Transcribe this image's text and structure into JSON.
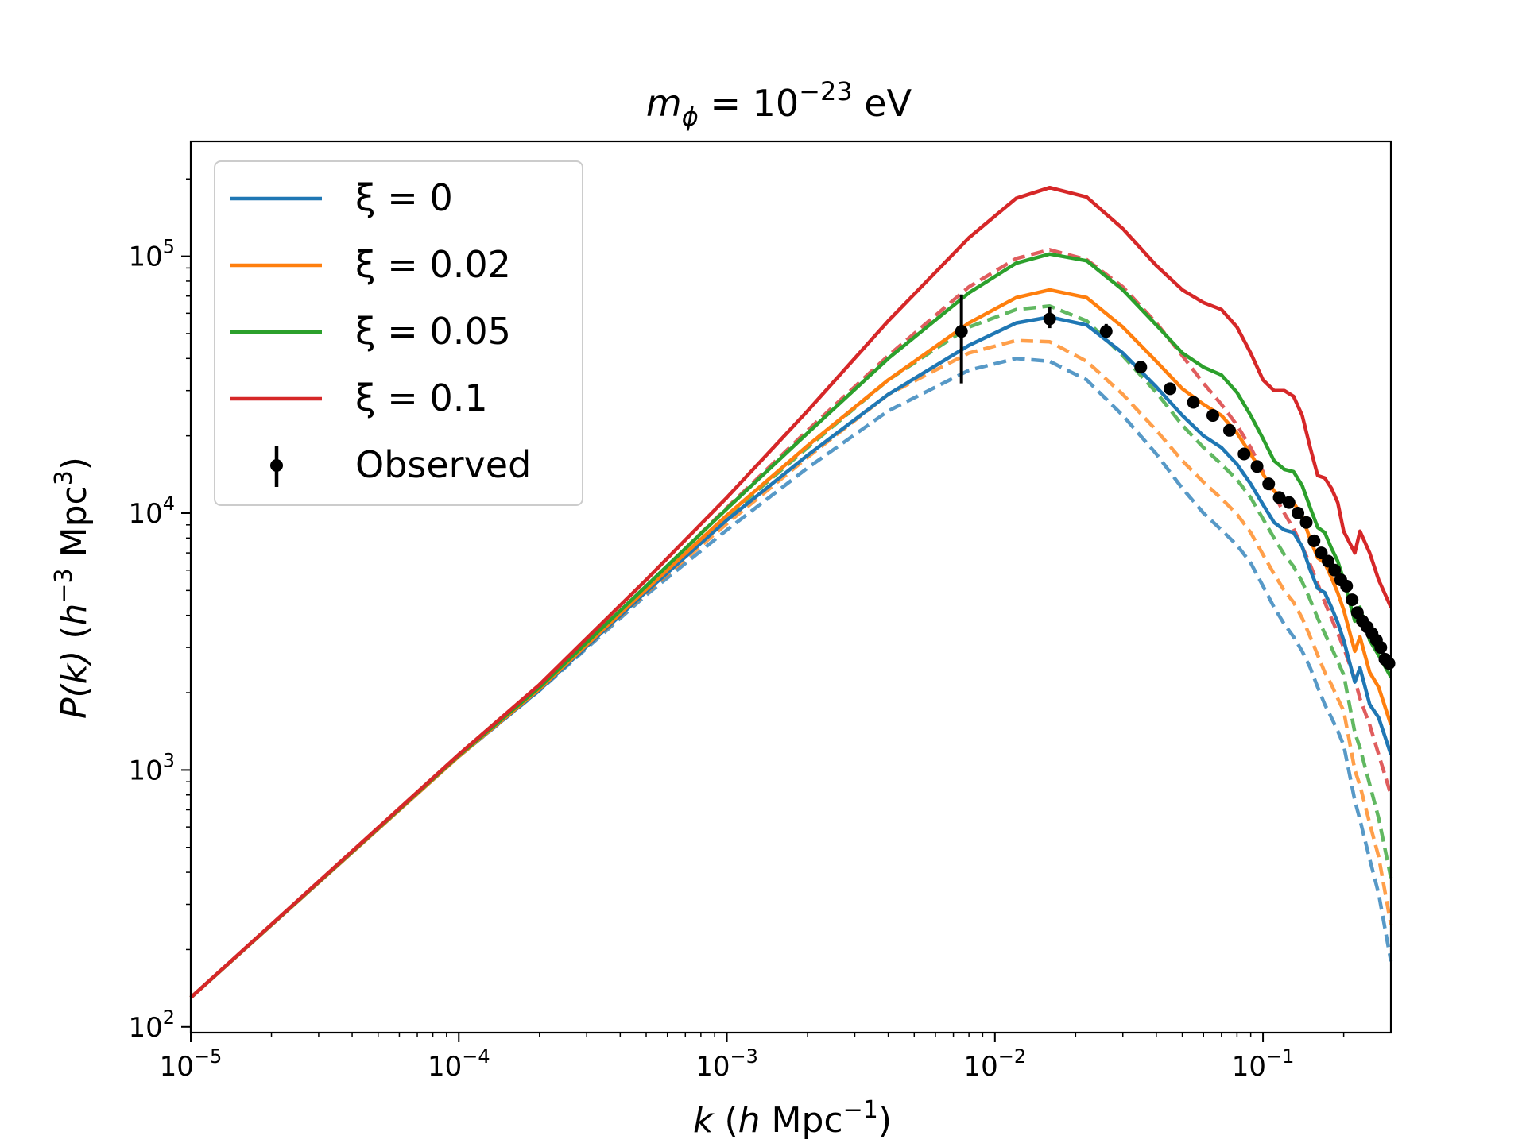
{
  "chart_data": {
    "type": "line",
    "title": "m_ϕ = 10^−23 eV",
    "title_parts": {
      "base": "m",
      "sub": "ϕ",
      "eq": " = 10",
      "sup": "−23",
      "unit": " eV"
    },
    "xlabel": "k (h Mpc^−1)",
    "xlabel_parts": {
      "k": "k",
      "open": " (",
      "h": "h",
      "mpc": " Mpc",
      "sup": "−1",
      "close": ")"
    },
    "ylabel": "P(k) (h^−3 Mpc^3)",
    "ylabel_parts": {
      "pk": "P(k)",
      "open": " (",
      "h": "h",
      "sup1": "−3",
      "mpc": " Mpc",
      "sup2": "3",
      "close": ")"
    },
    "xscale": "log",
    "yscale": "log",
    "xlim": [
      1e-05,
      0.3
    ],
    "ylim": [
      95,
      280000
    ],
    "x_ticks": [
      {
        "value": 1e-05,
        "base": "10",
        "exp": "−5"
      },
      {
        "value": 0.0001,
        "base": "10",
        "exp": "−4"
      },
      {
        "value": 0.001,
        "base": "10",
        "exp": "−3"
      },
      {
        "value": 0.01,
        "base": "10",
        "exp": "−2"
      },
      {
        "value": 0.1,
        "base": "10",
        "exp": "−1"
      }
    ],
    "y_ticks": [
      {
        "value": 100,
        "base": "10",
        "exp": "2"
      },
      {
        "value": 1000,
        "base": "10",
        "exp": "3"
      },
      {
        "value": 10000,
        "base": "10",
        "exp": "4"
      },
      {
        "value": 100000,
        "base": "10",
        "exp": "5"
      }
    ],
    "legend": {
      "location": "upper-left",
      "entries": [
        {
          "label": "ξ = 0",
          "color": "#1f77b4",
          "kind": "line"
        },
        {
          "label": "ξ = 0.02",
          "color": "#ff7f0e",
          "kind": "line"
        },
        {
          "label": "ξ = 0.05",
          "color": "#2ca02c",
          "kind": "line"
        },
        {
          "label": "ξ = 0.1",
          "color": "#d62728",
          "kind": "line"
        },
        {
          "label": "Observed",
          "color": "#000000",
          "kind": "errorbar"
        }
      ]
    },
    "series": [
      {
        "name": "ξ = 0",
        "style": "solid",
        "color": "#1f77b4",
        "x": [
          1e-05,
          0.0001,
          0.0002,
          0.0005,
          0.001,
          0.002,
          0.004,
          0.008,
          0.012,
          0.016,
          0.022,
          0.03,
          0.04,
          0.05,
          0.06,
          0.07,
          0.08,
          0.09,
          0.1,
          0.11,
          0.12,
          0.13,
          0.14,
          0.15,
          0.16,
          0.17,
          0.18,
          0.19,
          0.2,
          0.22,
          0.23,
          0.25,
          0.27,
          0.3
        ],
        "y": [
          130,
          1130,
          2050,
          4950,
          9400,
          16800,
          29000,
          45000,
          55000,
          58000,
          54000,
          42000,
          31000,
          24000,
          20000,
          18000,
          15500,
          13000,
          10800,
          9200,
          8600,
          8400,
          7400,
          6000,
          5100,
          4900,
          4300,
          3750,
          3200,
          2200,
          2500,
          1800,
          1600,
          1150
        ]
      },
      {
        "name": "ξ = 0.02",
        "style": "solid",
        "color": "#ff7f0e",
        "x": [
          1e-05,
          0.0001,
          0.0002,
          0.0005,
          0.001,
          0.002,
          0.004,
          0.008,
          0.012,
          0.016,
          0.022,
          0.03,
          0.04,
          0.05,
          0.06,
          0.07,
          0.08,
          0.09,
          0.1,
          0.11,
          0.12,
          0.13,
          0.14,
          0.15,
          0.16,
          0.17,
          0.18,
          0.19,
          0.2,
          0.22,
          0.23,
          0.25,
          0.27,
          0.3
        ],
        "y": [
          130,
          1130,
          2070,
          5050,
          9800,
          18300,
          33000,
          55000,
          69000,
          74000,
          69000,
          53000,
          39000,
          30500,
          26500,
          24000,
          20500,
          17000,
          14200,
          12200,
          11300,
          11000,
          9700,
          7900,
          6700,
          6400,
          5600,
          4900,
          4200,
          2900,
          3300,
          2400,
          2100,
          1500
        ]
      },
      {
        "name": "ξ = 0.05",
        "style": "solid",
        "color": "#2ca02c",
        "x": [
          1e-05,
          0.0001,
          0.0002,
          0.0005,
          0.001,
          0.002,
          0.004,
          0.008,
          0.012,
          0.016,
          0.022,
          0.03,
          0.04,
          0.05,
          0.06,
          0.07,
          0.08,
          0.09,
          0.1,
          0.11,
          0.12,
          0.13,
          0.14,
          0.15,
          0.16,
          0.17,
          0.18,
          0.19,
          0.2,
          0.22,
          0.23,
          0.25,
          0.27,
          0.3
        ],
        "y": [
          130,
          1140,
          2100,
          5200,
          10400,
          20500,
          40000,
          72000,
          94000,
          102000,
          96000,
          74000,
          54000,
          42000,
          37000,
          34500,
          29500,
          24000,
          19500,
          16000,
          14800,
          14500,
          12800,
          10500,
          8800,
          8400,
          7300,
          6500,
          5500,
          3800,
          4300,
          3200,
          2800,
          2300
        ]
      },
      {
        "name": "ξ = 0.1",
        "style": "solid",
        "color": "#d62728",
        "x": [
          1e-05,
          0.0001,
          0.0002,
          0.0005,
          0.001,
          0.002,
          0.004,
          0.008,
          0.012,
          0.016,
          0.022,
          0.03,
          0.04,
          0.05,
          0.06,
          0.07,
          0.08,
          0.09,
          0.1,
          0.11,
          0.12,
          0.13,
          0.14,
          0.15,
          0.16,
          0.17,
          0.18,
          0.19,
          0.2,
          0.22,
          0.23,
          0.25,
          0.27,
          0.3
        ],
        "y": [
          130,
          1150,
          2150,
          5500,
          11500,
          25000,
          56000,
          118000,
          168000,
          185000,
          170000,
          128000,
          92000,
          74000,
          66000,
          62000,
          53000,
          42000,
          33000,
          30000,
          30000,
          28500,
          24000,
          18000,
          14000,
          13700,
          12500,
          11000,
          8500,
          7000,
          8500,
          7000,
          5500,
          4300
        ]
      },
      {
        "name": "ξ = 0 (dashed)",
        "style": "dashed",
        "color": "#1f77b4",
        "x": [
          0.0001,
          0.0002,
          0.0005,
          0.001,
          0.002,
          0.004,
          0.008,
          0.012,
          0.016,
          0.022,
          0.03,
          0.04,
          0.05,
          0.06,
          0.07,
          0.08,
          0.09,
          0.1,
          0.11,
          0.12,
          0.13,
          0.14,
          0.15,
          0.16,
          0.17,
          0.18,
          0.19,
          0.2,
          0.22,
          0.23,
          0.25,
          0.27,
          0.3
        ],
        "y": [
          1130,
          2040,
          4800,
          8600,
          15000,
          25000,
          36000,
          40000,
          39000,
          33000,
          24000,
          17000,
          12500,
          10000,
          8600,
          7500,
          6400,
          5200,
          4300,
          3700,
          3300,
          2900,
          2500,
          2100,
          1800,
          1600,
          1420,
          1250,
          760,
          640,
          450,
          330,
          180
        ]
      },
      {
        "name": "ξ = 0.02 (dashed)",
        "style": "dashed",
        "color": "#ff7f0e",
        "x": [
          0.0001,
          0.0002,
          0.0005,
          0.001,
          0.002,
          0.004,
          0.008,
          0.012,
          0.016,
          0.022,
          0.03,
          0.04,
          0.05,
          0.06,
          0.07,
          0.08,
          0.09,
          0.1,
          0.11,
          0.12,
          0.13,
          0.14,
          0.15,
          0.16,
          0.17,
          0.18,
          0.19,
          0.2,
          0.22,
          0.23,
          0.25,
          0.27,
          0.3
        ],
        "y": [
          1130,
          2060,
          4900,
          9100,
          16500,
          29000,
          42000,
          47000,
          46500,
          39000,
          29000,
          21000,
          16000,
          13200,
          11400,
          9900,
          8400,
          6900,
          5800,
          5000,
          4500,
          3900,
          3300,
          2800,
          2400,
          2150,
          1900,
          1700,
          1000,
          870,
          620,
          460,
          250
        ]
      },
      {
        "name": "ξ = 0.05 (dashed)",
        "style": "dashed",
        "color": "#2ca02c",
        "x": [
          0.0001,
          0.0002,
          0.0005,
          0.001,
          0.002,
          0.004,
          0.008,
          0.012,
          0.016,
          0.022,
          0.03,
          0.04,
          0.05,
          0.06,
          0.07,
          0.08,
          0.09,
          0.1,
          0.11,
          0.12,
          0.13,
          0.14,
          0.15,
          0.16,
          0.17,
          0.18,
          0.19,
          0.2,
          0.22,
          0.23,
          0.25,
          0.27,
          0.3
        ],
        "y": [
          1140,
          2080,
          5000,
          9700,
          18000,
          33000,
          53000,
          62000,
          64000,
          56000,
          41000,
          29500,
          22000,
          18000,
          15500,
          13500,
          11500,
          9500,
          8000,
          6900,
          6200,
          5400,
          4600,
          3900,
          3400,
          3000,
          2650,
          2350,
          1400,
          1220,
          880,
          650,
          380
        ]
      },
      {
        "name": "ξ = 0.1 (dashed)",
        "style": "dashed",
        "color": "#d62728",
        "x": [
          0.0001,
          0.0002,
          0.0005,
          0.001,
          0.002,
          0.004,
          0.008,
          0.012,
          0.016,
          0.022,
          0.03,
          0.04,
          0.05,
          0.06,
          0.07,
          0.08,
          0.09,
          0.1,
          0.11,
          0.12,
          0.13,
          0.14,
          0.15,
          0.16,
          0.17,
          0.18,
          0.19,
          0.2,
          0.22,
          0.23,
          0.25,
          0.27,
          0.3
        ],
        "y": [
          1150,
          2100,
          5150,
          10500,
          21000,
          41000,
          76000,
          98000,
          106000,
          97000,
          76000,
          55000,
          41000,
          32000,
          26500,
          22000,
          18000,
          14500,
          11800,
          10000,
          8700,
          7400,
          6300,
          5300,
          4500,
          3900,
          3400,
          3000,
          2250,
          1900,
          1500,
          1150,
          800
        ]
      }
    ],
    "observed": {
      "name": "Observed",
      "color": "#000000",
      "x": [
        0.0075,
        0.016,
        0.026,
        0.035,
        0.045,
        0.055,
        0.065,
        0.075,
        0.085,
        0.095,
        0.105,
        0.115,
        0.125,
        0.135,
        0.145,
        0.155,
        0.165,
        0.175,
        0.185,
        0.195,
        0.205,
        0.215,
        0.225,
        0.235,
        0.245,
        0.255,
        0.265,
        0.275,
        0.285,
        0.295
      ],
      "y": [
        51000,
        57000,
        51000,
        37000,
        30500,
        27000,
        24000,
        21000,
        17000,
        15200,
        13000,
        11500,
        11000,
        10000,
        9200,
        7800,
        7000,
        6500,
        6000,
        5500,
        5200,
        4600,
        4100,
        3800,
        3600,
        3400,
        3200,
        3000,
        2700,
        2600
      ],
      "yerr_low": [
        19000,
        4500,
        2800,
        1200,
        900,
        700,
        600,
        500,
        400,
        350,
        300,
        280,
        260,
        240,
        220,
        200,
        190,
        180,
        170,
        160,
        150,
        140,
        130,
        120,
        110,
        100,
        95,
        90,
        85,
        80
      ],
      "yerr_high": [
        20000,
        6500,
        3500,
        1300,
        1000,
        800,
        650,
        550,
        450,
        380,
        320,
        300,
        280,
        260,
        240,
        220,
        200,
        190,
        180,
        170,
        160,
        150,
        140,
        130,
        120,
        110,
        100,
        95,
        90,
        85
      ]
    }
  }
}
